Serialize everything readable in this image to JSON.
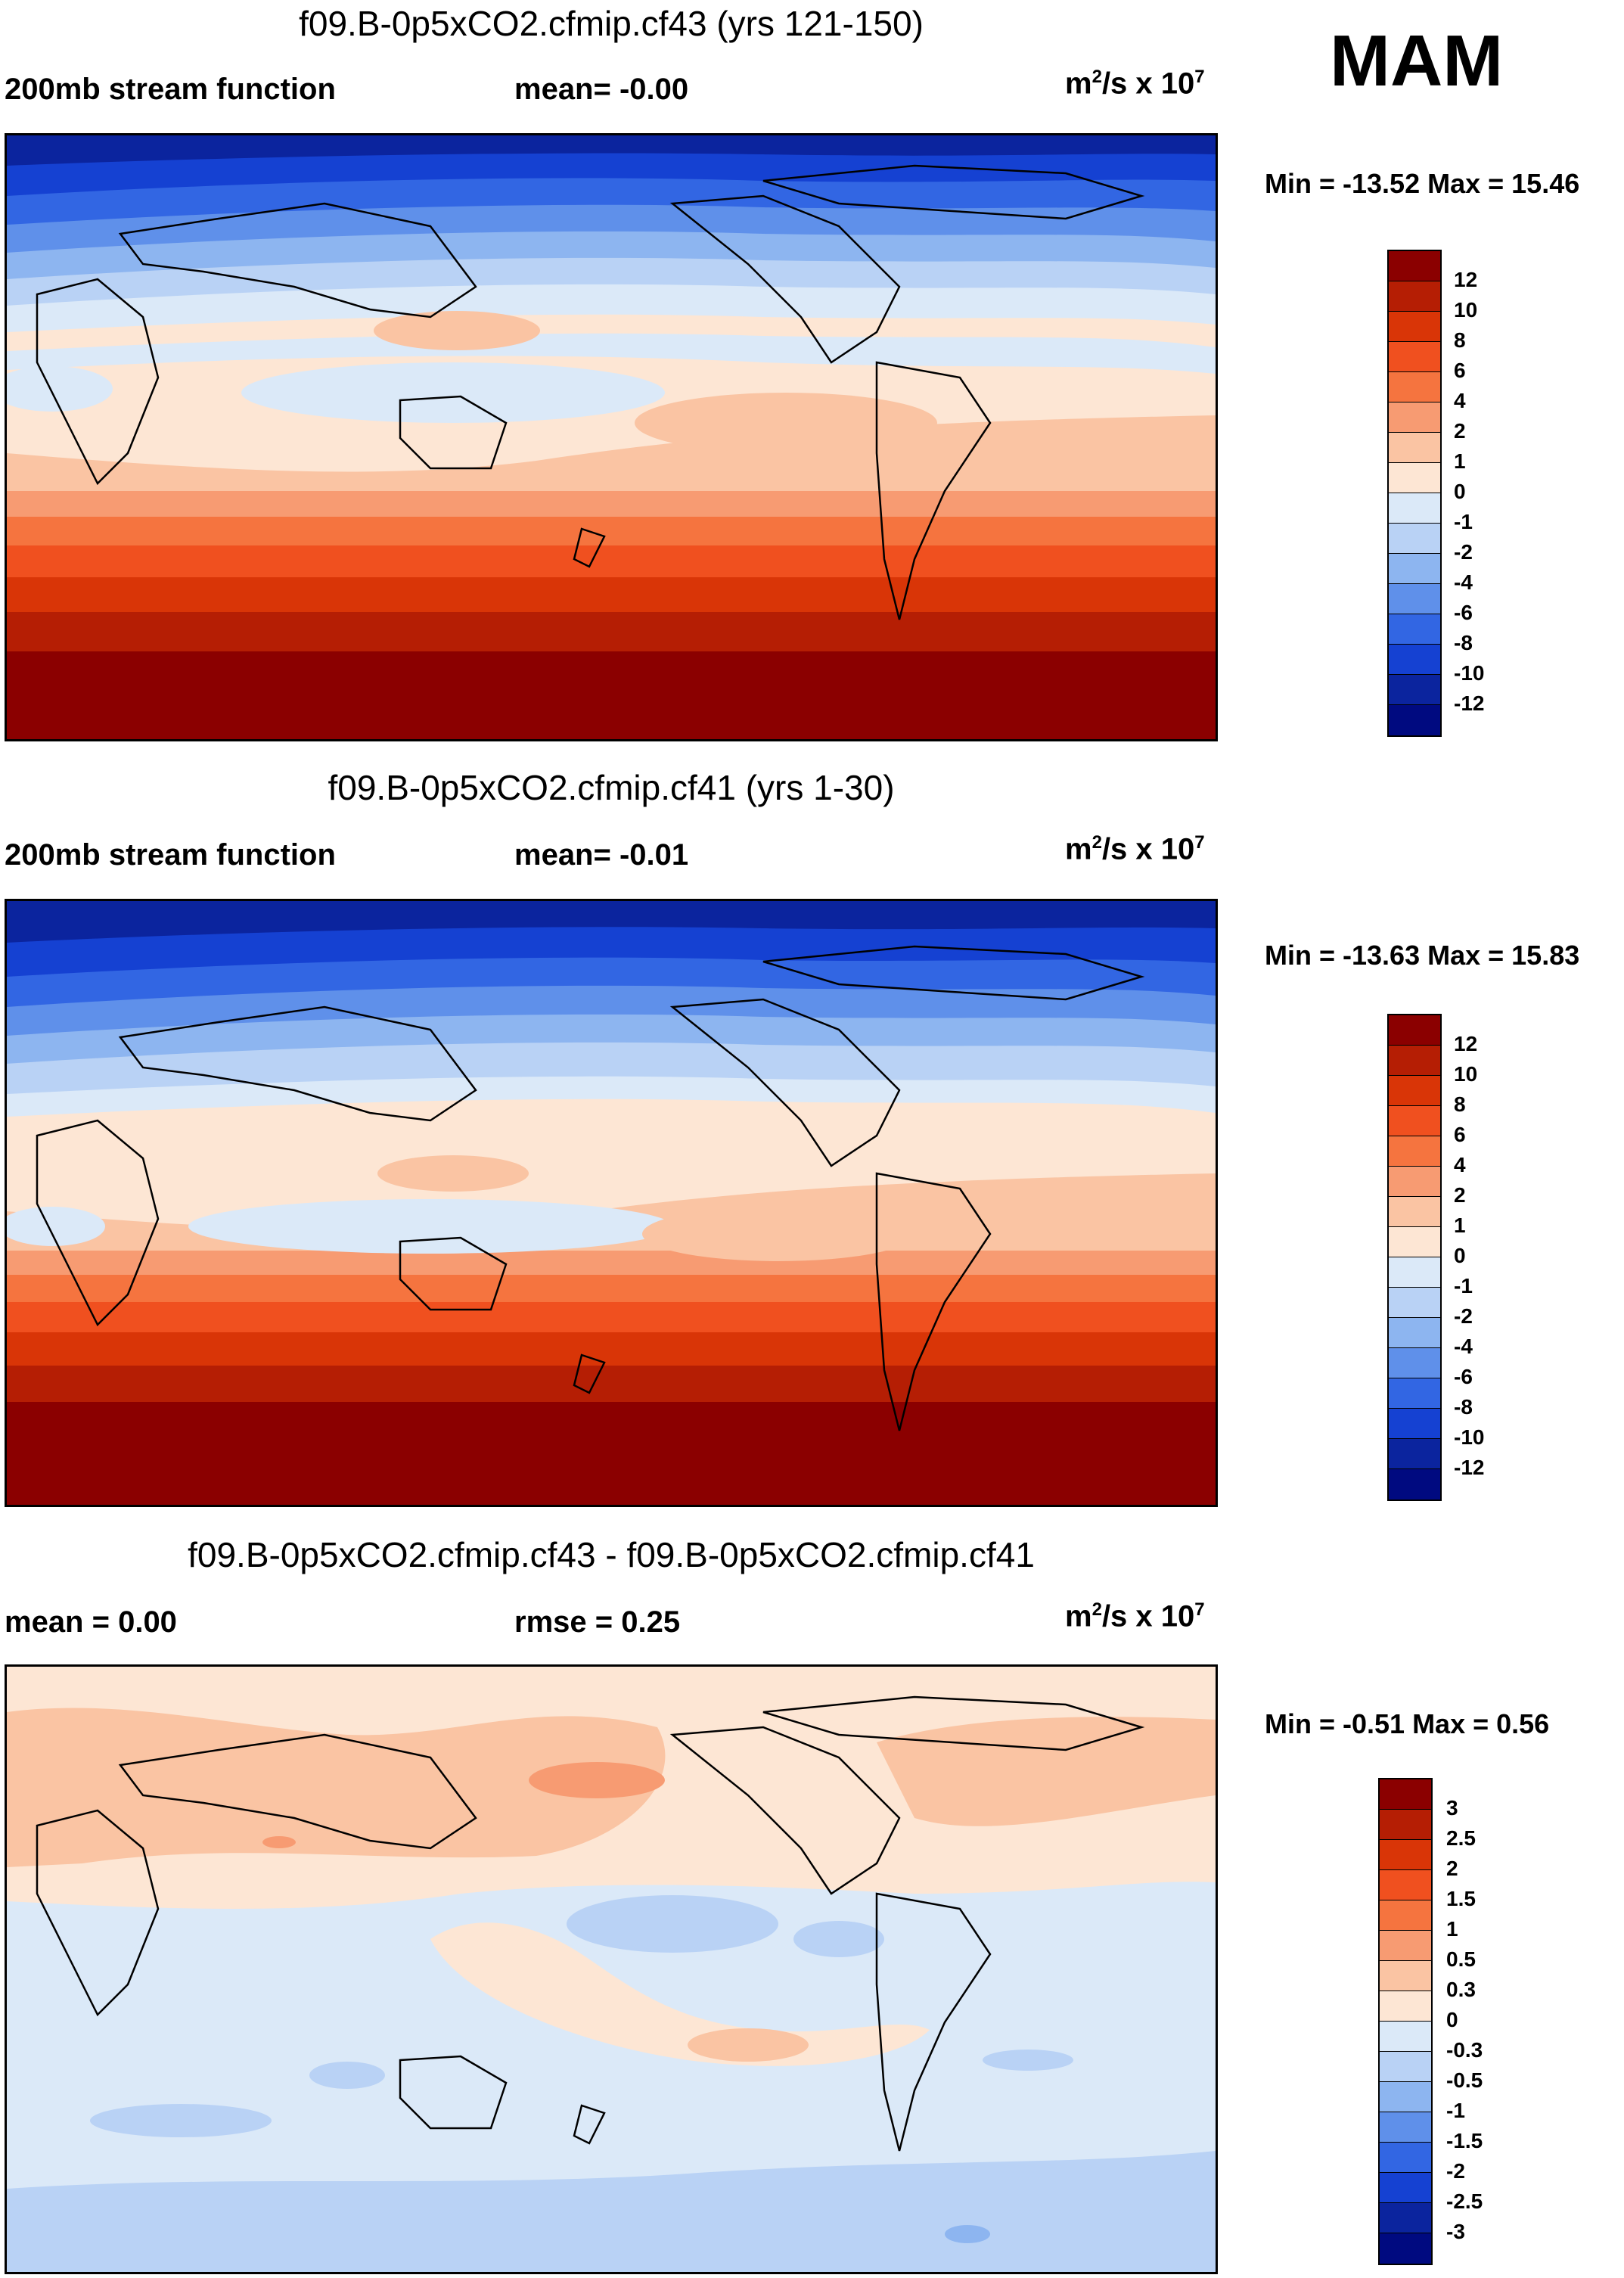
{
  "season": "MAM",
  "panels": [
    {
      "title": "f09.B-0p5xCO2.cfmip.cf43 (yrs 121-150)",
      "left_label": "200mb stream function",
      "mid_label": "mean=  -0.00",
      "units": "m",
      "units_sup": "2",
      "units_tail": "/s x 10",
      "units_exp": "7",
      "minmax": "Min = -13.52 Max =  15.46"
    },
    {
      "title": "f09.B-0p5xCO2.cfmip.cf41 (yrs 1-30)",
      "left_label": "200mb stream function",
      "mid_label": "mean=  -0.01",
      "units": "m",
      "units_sup": "2",
      "units_tail": "/s x 10",
      "units_exp": "7",
      "minmax": "Min = -13.63 Max =  15.83"
    },
    {
      "title": "f09.B-0p5xCO2.cfmip.cf43 - f09.B-0p5xCO2.cfmip.cf41",
      "left_label": "mean =   0.00",
      "mid_label": "rmse =   0.25",
      "units": "m",
      "units_sup": "2",
      "units_tail": "/s x 10",
      "units_exp": "7",
      "minmax": "Min =  -0.51 Max =   0.56"
    }
  ],
  "colorbars": {
    "abs": {
      "labels": [
        "12",
        "10",
        "8",
        "6",
        "4",
        "2",
        "1",
        "0",
        "-1",
        "-2",
        "-4",
        "-6",
        "-8",
        "-10",
        "-12"
      ],
      "colors": [
        "#8b0000",
        "#b51e04",
        "#d93507",
        "#f0501f",
        "#f5743f",
        "#f79b72",
        "#fac4a3",
        "#fde6d4",
        "#dbe9f8",
        "#b9d2f5",
        "#8db5f0",
        "#5f90ea",
        "#3266e3",
        "#1541d2",
        "#0b249e",
        "#000a80"
      ]
    },
    "diff": {
      "labels": [
        "3",
        "2.5",
        "2",
        "1.5",
        "1",
        "0.5",
        "0.3",
        "0",
        "-0.3",
        "-0.5",
        "-1",
        "-1.5",
        "-2",
        "-2.5",
        "-3"
      ],
      "colors": [
        "#8b0000",
        "#b51e04",
        "#d93507",
        "#f0501f",
        "#f5743f",
        "#f79b72",
        "#fac4a3",
        "#fde6d4",
        "#dbe9f8",
        "#b9d2f5",
        "#8db5f0",
        "#5f90ea",
        "#3266e3",
        "#1541d2",
        "#0b249e",
        "#000a80"
      ]
    }
  }
}
